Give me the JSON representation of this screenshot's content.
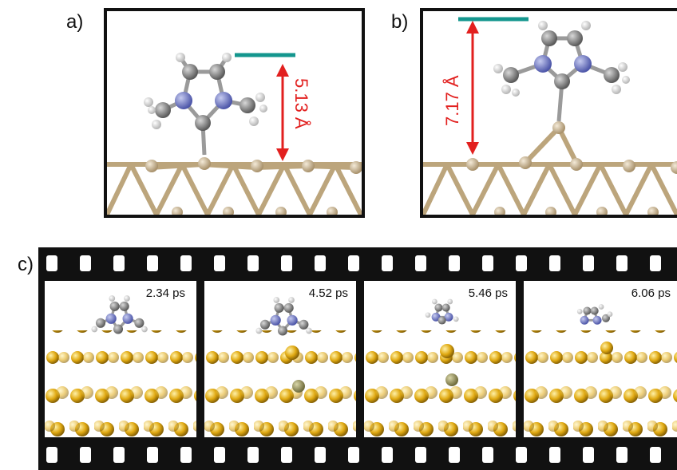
{
  "panels": {
    "a": {
      "label": "a)",
      "distance": "5.13 Å"
    },
    "b": {
      "label": "b)",
      "distance": "7.17 Å"
    },
    "c": {
      "label": "c)"
    }
  },
  "filmstrip": {
    "frames": [
      {
        "time": "2.34 ps"
      },
      {
        "time": "4.52 ps"
      },
      {
        "time": "5.46 ps"
      },
      {
        "time": "6.06 ps"
      }
    ]
  },
  "colors": {
    "metal": "#c8b08a",
    "carbon": "#8a8a8a",
    "nitrogen": "#6a73c8",
    "hydrogen": "#f2f2f2",
    "gold": "#e0a912",
    "teal_marker": "#14968e",
    "arrow_red": "#e2201f"
  }
}
